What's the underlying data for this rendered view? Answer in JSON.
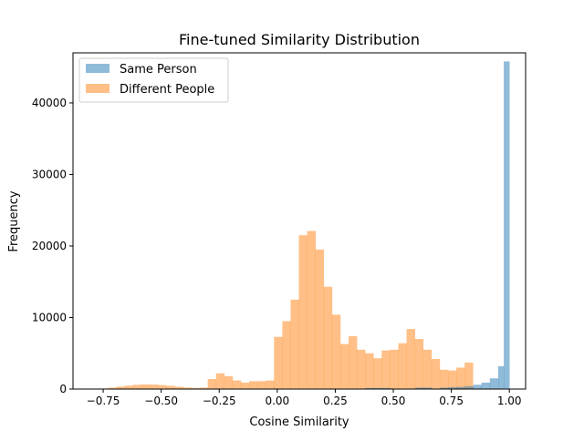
{
  "chart_data": {
    "type": "bar",
    "subtype": "histogram",
    "title": "Fine-tuned Similarity Distribution",
    "xlabel": "Cosine Similarity",
    "ylabel": "Frequency",
    "xlim": [
      -0.88,
      1.07
    ],
    "ylim": [
      0,
      47000
    ],
    "xticks": [
      -0.75,
      -0.5,
      -0.25,
      0.0,
      0.25,
      0.5,
      0.75,
      1.0
    ],
    "xtick_labels": [
      "−0.75",
      "−0.50",
      "−0.25",
      "0.00",
      "0.25",
      "0.50",
      "0.75",
      "1.00"
    ],
    "yticks": [
      0,
      10000,
      20000,
      30000,
      40000
    ],
    "ytick_labels": [
      "0",
      "10000",
      "20000",
      "30000",
      "40000"
    ],
    "grid": false,
    "legend_position": "top-left",
    "bin_width": 0.0357,
    "series": [
      {
        "name": "Same Person",
        "color": "#1f77b4",
        "alpha": 0.5,
        "bins": [
          [
            0.38,
            0.416,
            150
          ],
          [
            0.416,
            0.452,
            150
          ],
          [
            0.452,
            0.488,
            150
          ],
          [
            0.595,
            0.631,
            200
          ],
          [
            0.631,
            0.666,
            200
          ],
          [
            0.702,
            0.738,
            200
          ],
          [
            0.738,
            0.774,
            250
          ],
          [
            0.774,
            0.809,
            300
          ],
          [
            0.809,
            0.845,
            400
          ],
          [
            0.845,
            0.88,
            600
          ],
          [
            0.88,
            0.916,
            900
          ],
          [
            0.916,
            0.952,
            1500
          ],
          [
            0.952,
            0.976,
            3200
          ],
          [
            0.976,
            1.0,
            45800
          ]
        ]
      },
      {
        "name": "Different People",
        "color": "#ff7f0e",
        "alpha": 0.5,
        "bins_start": -0.835,
        "values": [
          10,
          30,
          80,
          200,
          350,
          480,
          600,
          650,
          630,
          560,
          450,
          330,
          220,
          150,
          200,
          1400,
          2200,
          1800,
          1200,
          900,
          1100,
          1100,
          1200,
          7300,
          9500,
          12500,
          21500,
          22100,
          19500,
          14300,
          10400,
          6300,
          7400,
          5500,
          5000,
          4300,
          5400,
          5500,
          6400,
          8400,
          7000,
          5500,
          4200,
          2700,
          2600,
          3000,
          3700
        ]
      }
    ]
  }
}
